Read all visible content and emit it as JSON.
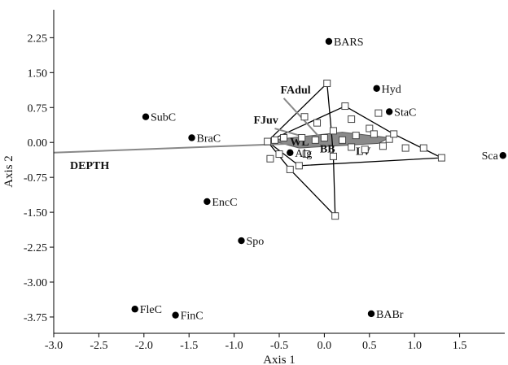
{
  "chart_data": {
    "type": "scatter",
    "title": "",
    "xlabel": "Axis 1",
    "ylabel": "Axis 2",
    "xlim": [
      -3.0,
      2.0
    ],
    "ylim": [
      -4.1,
      2.85
    ],
    "x_ticks": [
      -3.0,
      -2.5,
      -2.0,
      -1.5,
      -1.0,
      -0.5,
      0.0,
      0.5,
      1.0,
      1.5
    ],
    "x_tick_labels": [
      "-3.0",
      "-2.5",
      "-2.0",
      "-1.5",
      "-1.0",
      "-0.5",
      "0.0",
      "0.5",
      "1.0",
      "1.5"
    ],
    "y_ticks": [
      2.25,
      1.5,
      0.75,
      0.0,
      -0.75,
      -1.5,
      -2.25,
      -3.0,
      -3.75
    ],
    "y_tick_labels": [
      "2.25",
      "1.50",
      "0.75",
      "0.00",
      "-0.75",
      "-1.50",
      "-2.25",
      "-3.00",
      "-3.75"
    ],
    "grid": false,
    "species": [
      {
        "label": "BARS",
        "x": 0.05,
        "y": 2.17
      },
      {
        "label": "Hyd",
        "x": 0.58,
        "y": 1.16
      },
      {
        "label": "StaC",
        "x": 0.72,
        "y": 0.66
      },
      {
        "label": "SubC",
        "x": -1.98,
        "y": 0.55
      },
      {
        "label": "BraC",
        "x": -1.47,
        "y": 0.1
      },
      {
        "label": "Sca",
        "x": 1.98,
        "y": -0.28
      },
      {
        "label": "EncC",
        "x": -1.3,
        "y": -1.27
      },
      {
        "label": "Spo",
        "x": -0.92,
        "y": -2.11
      },
      {
        "label": "FleC",
        "x": -2.1,
        "y": -3.58
      },
      {
        "label": "FinC",
        "x": -1.65,
        "y": -3.71
      },
      {
        "label": "BABr",
        "x": 0.52,
        "y": -3.68
      },
      {
        "label": "Alg",
        "x": -0.38,
        "y": -0.22
      }
    ],
    "samples": [
      {
        "x": 0.03,
        "y": 1.27
      },
      {
        "x": 0.23,
        "y": 0.78
      },
      {
        "x": 0.6,
        "y": 0.63
      },
      {
        "x": 0.3,
        "y": 0.5
      },
      {
        "x": 0.5,
        "y": 0.3
      },
      {
        "x": 0.55,
        "y": 0.18
      },
      {
        "x": 0.72,
        "y": 0.07
      },
      {
        "x": 0.77,
        "y": 0.18
      },
      {
        "x": 0.35,
        "y": 0.15
      },
      {
        "x": 0.1,
        "y": 0.25
      },
      {
        "x": 0.0,
        "y": 0.1
      },
      {
        "x": -0.08,
        "y": 0.42
      },
      {
        "x": -0.22,
        "y": 0.55
      },
      {
        "x": -0.45,
        "y": 0.1
      },
      {
        "x": -0.55,
        "y": 0.05
      },
      {
        "x": -0.63,
        "y": 0.02
      },
      {
        "x": -0.5,
        "y": -0.25
      },
      {
        "x": -0.2,
        "y": -0.25
      },
      {
        "x": 0.1,
        "y": -0.3
      },
      {
        "x": 0.3,
        "y": -0.1
      },
      {
        "x": 0.45,
        "y": -0.15
      },
      {
        "x": 0.65,
        "y": -0.08
      },
      {
        "x": 0.9,
        "y": -0.12
      },
      {
        "x": 1.1,
        "y": -0.12
      },
      {
        "x": 1.3,
        "y": -0.33
      },
      {
        "x": 0.12,
        "y": -1.58
      },
      {
        "x": -0.38,
        "y": -0.58
      },
      {
        "x": -0.28,
        "y": -0.5
      },
      {
        "x": -0.6,
        "y": -0.35
      },
      {
        "x": -0.25,
        "y": 0.1
      },
      {
        "x": -0.1,
        "y": 0.05
      },
      {
        "x": 0.2,
        "y": 0.05
      }
    ],
    "hulls": [
      [
        [
          0.03,
          1.27
        ],
        [
          0.08,
          0.2
        ],
        [
          0.1,
          -0.3
        ],
        [
          0.12,
          -1.58
        ],
        [
          -0.38,
          -0.58
        ],
        [
          -0.63,
          0.02
        ],
        [
          0.03,
          1.27
        ]
      ],
      [
        [
          0.23,
          0.78
        ],
        [
          0.77,
          0.18
        ],
        [
          1.3,
          -0.33
        ],
        [
          -0.28,
          -0.5
        ],
        [
          -0.63,
          0.02
        ],
        [
          0.23,
          0.78
        ]
      ]
    ],
    "centroid_region": [
      [
        -0.6,
        0.05
      ],
      [
        0.2,
        0.22
      ],
      [
        0.72,
        0.1
      ],
      [
        0.6,
        -0.02
      ],
      [
        -0.28,
        -0.12
      ],
      [
        -0.6,
        0.05
      ]
    ],
    "vectors": [
      {
        "label": "DEPTH",
        "x": -3.0,
        "y": -0.22
      },
      {
        "label": "FAdul",
        "x": -0.45,
        "y": 0.95
      },
      {
        "label": "FJuv",
        "x": -0.55,
        "y": 0.3
      }
    ],
    "group_labels": [
      {
        "label": "WL",
        "x": -0.38,
        "y": 0.02
      },
      {
        "label": "BB",
        "x": -0.05,
        "y": -0.13
      },
      {
        "label": "LV",
        "x": 0.35,
        "y": -0.18
      }
    ]
  }
}
